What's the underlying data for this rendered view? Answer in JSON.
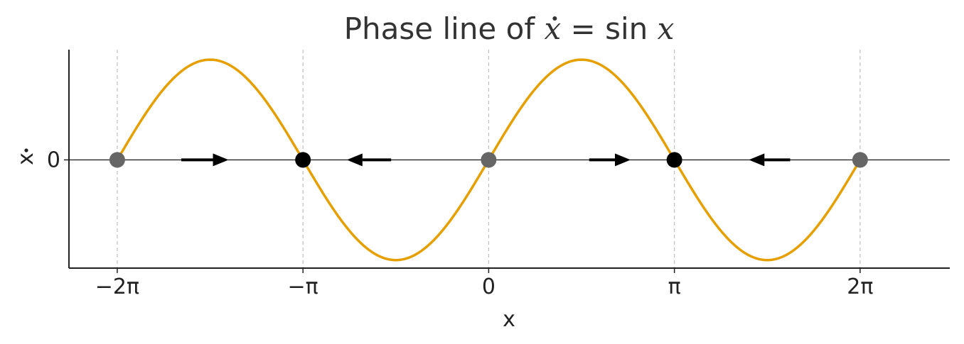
{
  "chart_data": {
    "type": "line",
    "title": {
      "prefix": "Phase line of ",
      "var": "x",
      "equals": " = ",
      "func": "sin",
      "arg": "x"
    },
    "xlabel": "x",
    "ylabel": "x",
    "x_ticks": [
      {
        "value": -6.283185,
        "label": "−2π"
      },
      {
        "value": -3.141593,
        "label": "−π"
      },
      {
        "value": 0,
        "label": "0"
      },
      {
        "value": 3.141593,
        "label": "π"
      },
      {
        "value": 6.283185,
        "label": "2π"
      }
    ],
    "y_ticks": [
      {
        "value": 0,
        "label": "0"
      }
    ],
    "xlim": [
      -7.1,
      7.8
    ],
    "ylim": [
      -1.08,
      1.1
    ],
    "grid": {
      "x": true,
      "y": false
    },
    "curve": {
      "function": "sin(x)",
      "x_range": [
        -6.283185,
        6.283185
      ],
      "color": "#E69F00"
    },
    "fixed_points": [
      {
        "x": -6.283185,
        "stability": "unstable",
        "color": "#666666"
      },
      {
        "x": -3.141593,
        "stability": "stable",
        "color": "#000000"
      },
      {
        "x": 0,
        "stability": "unstable",
        "color": "#666666"
      },
      {
        "x": 3.141593,
        "stability": "stable",
        "color": "#000000"
      },
      {
        "x": 6.283185,
        "stability": "unstable",
        "color": "#666666"
      }
    ],
    "flow_arrows": [
      {
        "x_from": -5.2,
        "x_to": -4.4,
        "direction": "right"
      },
      {
        "x_from": -1.65,
        "x_to": -2.4,
        "direction": "left"
      },
      {
        "x_from": 1.7,
        "x_to": 2.4,
        "direction": "right"
      },
      {
        "x_from": 5.1,
        "x_to": 4.4,
        "direction": "left"
      }
    ]
  }
}
